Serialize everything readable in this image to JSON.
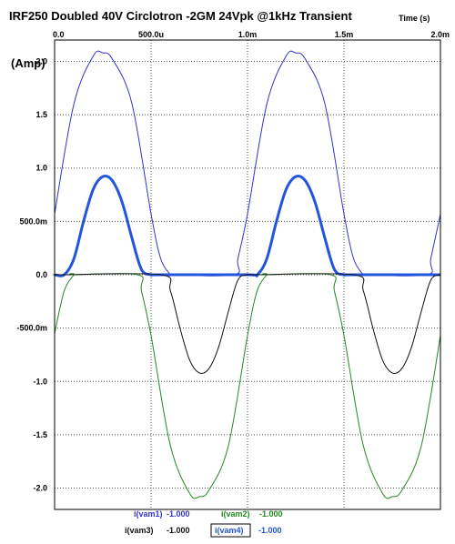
{
  "chart_data": {
    "type": "line",
    "title": "IRF250 Doubled 40V Circlotron -2GM 24Vpk @1kHz Transient",
    "xlabel": "Time  (s)",
    "ylabel": "(Amp)",
    "xlim": [
      0,
      0.002
    ],
    "ylim": [
      -2.2,
      2.2
    ],
    "grid": true,
    "x_ticks": [
      {
        "value": 0,
        "label": "0.0"
      },
      {
        "value": 0.0005,
        "label": "500.0u"
      },
      {
        "value": 0.001,
        "label": "1.0m"
      },
      {
        "value": 0.0015,
        "label": "1.5m"
      },
      {
        "value": 0.002,
        "label": "2.0m"
      }
    ],
    "y_ticks": [
      {
        "value": 2.0,
        "label": "2.0"
      },
      {
        "value": 1.5,
        "label": "1.5"
      },
      {
        "value": 1.0,
        "label": "1.0"
      },
      {
        "value": 0.5,
        "label": "500.0m"
      },
      {
        "value": 0.0,
        "label": "0.0"
      },
      {
        "value": -0.5,
        "label": "-500.0m"
      },
      {
        "value": -1.0,
        "label": "-1.0"
      },
      {
        "value": -1.5,
        "label": "-1.5"
      },
      {
        "value": -2.0,
        "label": "-2.0"
      }
    ],
    "series": [
      {
        "name": "i(vam1)",
        "scale": "-1.000",
        "color": "#3333cc",
        "width": 1,
        "x": [
          0,
          0.0001,
          0.0002,
          0.00025,
          0.0003,
          0.0004,
          0.0005,
          0.00055,
          0.0006,
          0.0006,
          0.00093,
          0.00095,
          0.001,
          0.0011,
          0.0012,
          0.00125,
          0.0013,
          0.0014,
          0.0015,
          0.00155,
          0.0016,
          0.0016,
          0.00193,
          0.00195,
          0.002
        ],
        "y": [
          0.57,
          1.6,
          2.05,
          2.08,
          2.02,
          1.61,
          0.57,
          0.15,
          0.0,
          0.0,
          0.0,
          0.15,
          0.57,
          1.6,
          2.05,
          2.08,
          2.02,
          1.61,
          0.57,
          0.15,
          0.0,
          0.0,
          0.0,
          0.15,
          0.57
        ]
      },
      {
        "name": "i(vam4)",
        "scale": "-1.000",
        "color": "#2255dd",
        "width": 3,
        "x": [
          0,
          5e-05,
          0.0001,
          0.00015,
          0.0002,
          0.00025,
          0.0003,
          0.00035,
          0.0004,
          0.00045,
          0.0005,
          0.00055,
          0.001,
          0.00105,
          0.0011,
          0.00115,
          0.0012,
          0.00125,
          0.0013,
          0.00135,
          0.0014,
          0.00145,
          0.0015,
          0.00155,
          0.002
        ],
        "y": [
          0.0,
          0.0,
          0.15,
          0.5,
          0.8,
          0.92,
          0.88,
          0.68,
          0.35,
          0.05,
          0.0,
          0.0,
          0.0,
          0.0,
          0.15,
          0.5,
          0.8,
          0.92,
          0.88,
          0.68,
          0.35,
          0.05,
          0.0,
          0.0,
          0.0
        ]
      },
      {
        "name": "i(vam2)",
        "scale": "-1.000",
        "color": "#228822",
        "width": 1,
        "x": [
          0,
          5e-05,
          0.0001,
          0.0001,
          0.00043,
          0.00045,
          0.0005,
          0.0006,
          0.0007,
          0.00075,
          0.0008,
          0.0009,
          0.001,
          0.00105,
          0.0011,
          0.0011,
          0.00143,
          0.00145,
          0.0015,
          0.0016,
          0.0017,
          0.00175,
          0.0018,
          0.0019,
          0.002
        ],
        "y": [
          -0.55,
          -0.15,
          0.0,
          0.0,
          0.0,
          -0.15,
          -0.57,
          -1.6,
          -2.05,
          -2.08,
          -2.02,
          -1.61,
          -0.57,
          -0.15,
          0.0,
          0.0,
          0.0,
          -0.15,
          -0.57,
          -1.6,
          -2.05,
          -2.08,
          -2.02,
          -1.61,
          -0.57
        ]
      },
      {
        "name": "i(vam3)",
        "scale": "-1.000",
        "color": "#111111",
        "width": 1,
        "x": [
          0,
          5e-05,
          0.00055,
          0.0006,
          0.00065,
          0.0007,
          0.00075,
          0.0008,
          0.00085,
          0.0009,
          0.00095,
          0.001,
          0.00105,
          0.00155,
          0.0016,
          0.00165,
          0.0017,
          0.00175,
          0.0018,
          0.00185,
          0.0019,
          0.00195,
          0.002
        ],
        "y": [
          0.0,
          0.0,
          0.0,
          -0.15,
          -0.5,
          -0.8,
          -0.92,
          -0.88,
          -0.68,
          -0.35,
          -0.05,
          0.0,
          0.0,
          0.0,
          -0.15,
          -0.5,
          -0.8,
          -0.92,
          -0.88,
          -0.68,
          -0.35,
          -0.05,
          0.0
        ]
      }
    ]
  }
}
